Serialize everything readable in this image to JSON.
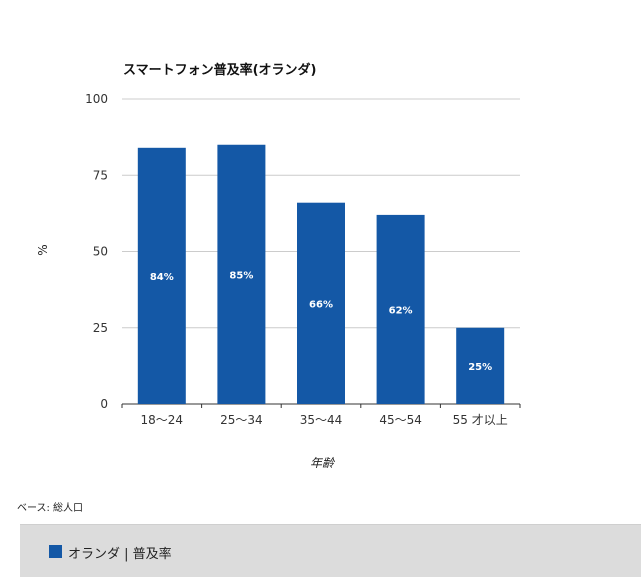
{
  "colors": {
    "bar": "#1458a6",
    "grid": "#cccccc",
    "axis": "#333333",
    "legend_bg": "#dcdcdc"
  },
  "note": "ベース: 総人口",
  "legend": {
    "label": "オランダ | 普及率"
  },
  "chart_data": {
    "type": "bar",
    "title": "スマートフォン普及率(オランダ)",
    "xlabel": "年齢",
    "ylabel": "%",
    "ylim": [
      0,
      100
    ],
    "yticks": [
      0,
      25,
      50,
      75,
      100
    ],
    "categories": [
      "18〜24",
      "25〜34",
      "35〜44",
      "45〜54",
      "55 才以上"
    ],
    "series": [
      {
        "name": "オランダ | 普及率",
        "values": [
          84,
          85,
          66,
          62,
          25
        ],
        "data_labels": [
          "84%",
          "85%",
          "66%",
          "62%",
          "25%"
        ]
      }
    ],
    "grid": true,
    "legend_position": "bottom"
  }
}
